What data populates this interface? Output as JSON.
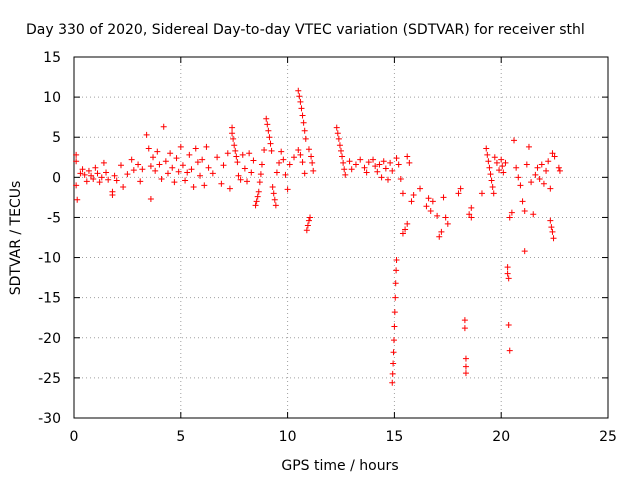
{
  "chart_data": {
    "type": "scatter",
    "title": "Day 330 of 2020, Sidereal Day-to-day VTEC variation (SDTVAR) for receiver sthl",
    "xlabel": "GPS time / hours",
    "ylabel": "SDTVAR / TECUs",
    "xlim": [
      0,
      25
    ],
    "ylim": [
      -30,
      15
    ],
    "xticks": [
      0,
      5,
      10,
      15,
      20,
      25
    ],
    "yticks": [
      -30,
      -25,
      -20,
      -15,
      -10,
      -5,
      0,
      5,
      10,
      15
    ],
    "grid": true,
    "marker": "plus",
    "color": "#ff0000",
    "series": [
      {
        "name": "SDTVAR",
        "points": [
          [
            0.1,
            2.8
          ],
          [
            0.1,
            2.0
          ],
          [
            0.1,
            -1.0
          ],
          [
            0.15,
            -2.8
          ],
          [
            0.3,
            0.5
          ],
          [
            0.4,
            1.0
          ],
          [
            0.5,
            0.3
          ],
          [
            0.6,
            -0.5
          ],
          [
            0.7,
            0.8
          ],
          [
            0.8,
            0.2
          ],
          [
            0.9,
            -0.2
          ],
          [
            1.0,
            1.2
          ],
          [
            1.1,
            0.5
          ],
          [
            1.2,
            -0.6
          ],
          [
            1.3,
            0.0
          ],
          [
            1.4,
            1.8
          ],
          [
            1.5,
            0.6
          ],
          [
            1.6,
            -0.3
          ],
          [
            1.8,
            -1.8
          ],
          [
            1.8,
            -2.2
          ],
          [
            1.9,
            0.2
          ],
          [
            2.0,
            -0.4
          ],
          [
            2.2,
            1.5
          ],
          [
            2.3,
            -1.2
          ],
          [
            2.5,
            0.4
          ],
          [
            2.7,
            2.2
          ],
          [
            2.8,
            0.9
          ],
          [
            3.0,
            1.6
          ],
          [
            3.1,
            -0.5
          ],
          [
            3.2,
            1.0
          ],
          [
            3.4,
            5.3
          ],
          [
            3.5,
            3.6
          ],
          [
            3.6,
            1.4
          ],
          [
            3.6,
            -2.7
          ],
          [
            3.7,
            2.5
          ],
          [
            3.8,
            0.8
          ],
          [
            3.9,
            3.2
          ],
          [
            4.0,
            1.6
          ],
          [
            4.1,
            -0.2
          ],
          [
            4.2,
            6.3
          ],
          [
            4.3,
            2.0
          ],
          [
            4.4,
            0.5
          ],
          [
            4.5,
            3.0
          ],
          [
            4.6,
            1.2
          ],
          [
            4.7,
            -0.6
          ],
          [
            4.8,
            2.4
          ],
          [
            4.9,
            0.7
          ],
          [
            5.0,
            3.8
          ],
          [
            5.1,
            1.5
          ],
          [
            5.2,
            -0.4
          ],
          [
            5.3,
            0.6
          ],
          [
            5.4,
            2.8
          ],
          [
            5.5,
            1.0
          ],
          [
            5.6,
            -1.2
          ],
          [
            5.7,
            3.6
          ],
          [
            5.8,
            1.9
          ],
          [
            5.9,
            0.2
          ],
          [
            6.0,
            2.2
          ],
          [
            6.1,
            -1.0
          ],
          [
            6.2,
            3.8
          ],
          [
            6.3,
            1.2
          ],
          [
            6.5,
            0.5
          ],
          [
            6.7,
            2.5
          ],
          [
            6.9,
            -0.8
          ],
          [
            7.0,
            1.5
          ],
          [
            7.2,
            3.0
          ],
          [
            7.3,
            -1.4
          ],
          [
            7.4,
            6.2
          ],
          [
            7.4,
            5.5
          ],
          [
            7.45,
            4.8
          ],
          [
            7.5,
            4.0
          ],
          [
            7.55,
            3.3
          ],
          [
            7.6,
            2.6
          ],
          [
            7.65,
            1.9
          ],
          [
            7.7,
            0.2
          ],
          [
            7.8,
            -0.3
          ],
          [
            7.9,
            2.8
          ],
          [
            8.0,
            1.1
          ],
          [
            8.1,
            -0.5
          ],
          [
            8.2,
            3.0
          ],
          [
            8.3,
            0.6
          ],
          [
            8.4,
            2.1
          ],
          [
            8.5,
            -3.5
          ],
          [
            8.55,
            -3.0
          ],
          [
            8.6,
            -2.4
          ],
          [
            8.65,
            -1.8
          ],
          [
            8.7,
            -0.6
          ],
          [
            8.75,
            0.4
          ],
          [
            8.8,
            1.6
          ],
          [
            8.9,
            3.4
          ],
          [
            9.0,
            7.3
          ],
          [
            9.05,
            6.6
          ],
          [
            9.1,
            5.8
          ],
          [
            9.15,
            5.0
          ],
          [
            9.2,
            4.2
          ],
          [
            9.25,
            3.3
          ],
          [
            9.3,
            -1.2
          ],
          [
            9.35,
            -2.0
          ],
          [
            9.4,
            -2.8
          ],
          [
            9.45,
            -3.5
          ],
          [
            9.5,
            0.6
          ],
          [
            9.6,
            1.8
          ],
          [
            9.7,
            3.2
          ],
          [
            9.8,
            2.2
          ],
          [
            9.9,
            0.3
          ],
          [
            10.0,
            -1.5
          ],
          [
            10.1,
            1.6
          ],
          [
            10.3,
            2.5
          ],
          [
            10.5,
            10.8
          ],
          [
            10.55,
            10.1
          ],
          [
            10.6,
            9.4
          ],
          [
            10.65,
            8.6
          ],
          [
            10.7,
            7.7
          ],
          [
            10.75,
            6.8
          ],
          [
            10.8,
            5.8
          ],
          [
            10.85,
            4.8
          ],
          [
            10.9,
            -6.6
          ],
          [
            10.95,
            -6.0
          ],
          [
            11.0,
            -5.4
          ],
          [
            11.05,
            -5.0
          ],
          [
            10.5,
            3.4
          ],
          [
            10.6,
            2.8
          ],
          [
            10.7,
            1.9
          ],
          [
            10.8,
            0.5
          ],
          [
            11.0,
            3.5
          ],
          [
            11.1,
            2.6
          ],
          [
            11.15,
            1.8
          ],
          [
            11.2,
            0.8
          ],
          [
            12.3,
            6.2
          ],
          [
            12.35,
            5.5
          ],
          [
            12.4,
            4.8
          ],
          [
            12.45,
            4.0
          ],
          [
            12.5,
            3.3
          ],
          [
            12.55,
            2.6
          ],
          [
            12.6,
            1.8
          ],
          [
            12.65,
            1.0
          ],
          [
            12.7,
            0.3
          ],
          [
            12.9,
            2.0
          ],
          [
            13.0,
            1.0
          ],
          [
            13.2,
            1.6
          ],
          [
            13.4,
            2.2
          ],
          [
            13.6,
            1.2
          ],
          [
            13.7,
            0.6
          ],
          [
            13.8,
            1.9
          ],
          [
            14.0,
            2.2
          ],
          [
            14.1,
            1.4
          ],
          [
            14.2,
            0.7
          ],
          [
            14.3,
            1.6
          ],
          [
            14.4,
            0.0
          ],
          [
            14.5,
            2.0
          ],
          [
            14.6,
            1.1
          ],
          [
            14.7,
            -0.3
          ],
          [
            14.8,
            1.8
          ],
          [
            14.9,
            0.8
          ],
          [
            14.9,
            -25.6
          ],
          [
            14.92,
            -24.5
          ],
          [
            14.94,
            -23.2
          ],
          [
            14.96,
            -21.8
          ],
          [
            14.98,
            -20.3
          ],
          [
            15.0,
            -18.6
          ],
          [
            15.02,
            -16.8
          ],
          [
            15.04,
            -15.0
          ],
          [
            15.06,
            -13.2
          ],
          [
            15.08,
            -11.6
          ],
          [
            15.1,
            -10.3
          ],
          [
            15.1,
            2.4
          ],
          [
            15.2,
            1.6
          ],
          [
            15.3,
            -0.2
          ],
          [
            15.4,
            -2.0
          ],
          [
            15.4,
            -7.0
          ],
          [
            15.5,
            -6.5
          ],
          [
            15.6,
            -5.8
          ],
          [
            15.6,
            2.6
          ],
          [
            15.7,
            1.8
          ],
          [
            15.8,
            -3.0
          ],
          [
            15.9,
            -2.2
          ],
          [
            16.2,
            -1.4
          ],
          [
            16.5,
            -3.6
          ],
          [
            16.6,
            -2.6
          ],
          [
            16.7,
            -4.2
          ],
          [
            16.8,
            -3.0
          ],
          [
            17.0,
            -4.8
          ],
          [
            17.1,
            -7.4
          ],
          [
            17.2,
            -6.8
          ],
          [
            17.3,
            -2.5
          ],
          [
            17.4,
            -5.0
          ],
          [
            17.5,
            -5.8
          ],
          [
            18.0,
            -2.0
          ],
          [
            18.1,
            -1.4
          ],
          [
            18.3,
            -17.8
          ],
          [
            18.3,
            -18.8
          ],
          [
            18.35,
            -22.6
          ],
          [
            18.35,
            -23.6
          ],
          [
            18.35,
            -24.4
          ],
          [
            18.5,
            -4.6
          ],
          [
            18.6,
            -3.8
          ],
          [
            18.6,
            -5.0
          ],
          [
            19.1,
            -2.0
          ],
          [
            19.3,
            3.6
          ],
          [
            19.35,
            2.8
          ],
          [
            19.4,
            2.0
          ],
          [
            19.45,
            1.2
          ],
          [
            19.5,
            0.4
          ],
          [
            19.55,
            -0.4
          ],
          [
            19.6,
            -1.2
          ],
          [
            19.65,
            -2.0
          ],
          [
            19.7,
            2.5
          ],
          [
            19.8,
            1.8
          ],
          [
            19.9,
            0.9
          ],
          [
            20.0,
            2.2
          ],
          [
            20.05,
            1.4
          ],
          [
            20.1,
            0.6
          ],
          [
            20.2,
            1.8
          ],
          [
            20.3,
            -11.2
          ],
          [
            20.3,
            -12.0
          ],
          [
            20.35,
            -12.6
          ],
          [
            20.35,
            -18.4
          ],
          [
            20.4,
            -21.6
          ],
          [
            20.4,
            -5.0
          ],
          [
            20.5,
            -4.4
          ],
          [
            20.6,
            4.6
          ],
          [
            20.7,
            1.2
          ],
          [
            20.8,
            0.0
          ],
          [
            20.9,
            -1.0
          ],
          [
            21.0,
            -3.0
          ],
          [
            21.1,
            -4.2
          ],
          [
            21.1,
            -9.2
          ],
          [
            21.2,
            1.6
          ],
          [
            21.3,
            3.8
          ],
          [
            21.4,
            -0.6
          ],
          [
            21.5,
            -4.6
          ],
          [
            21.6,
            0.3
          ],
          [
            21.7,
            1.2
          ],
          [
            21.8,
            -0.2
          ],
          [
            21.9,
            1.6
          ],
          [
            22.0,
            -0.8
          ],
          [
            22.1,
            0.8
          ],
          [
            22.2,
            2.0
          ],
          [
            22.3,
            -1.4
          ],
          [
            22.3,
            -5.4
          ],
          [
            22.35,
            -6.2
          ],
          [
            22.4,
            -6.8
          ],
          [
            22.45,
            -7.6
          ],
          [
            22.4,
            3.0
          ],
          [
            22.5,
            2.6
          ],
          [
            22.7,
            1.2
          ],
          [
            22.75,
            0.8
          ]
        ]
      }
    ]
  }
}
